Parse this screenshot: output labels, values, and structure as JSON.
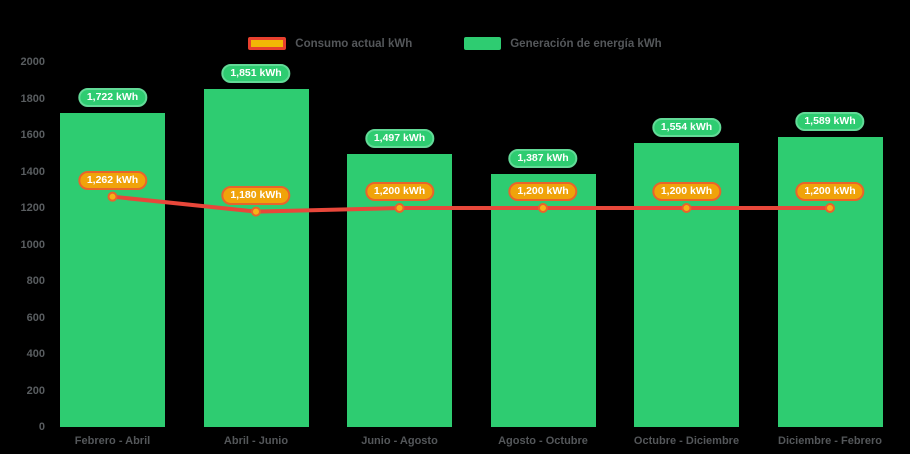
{
  "legend": {
    "items": [
      {
        "id": "consumo",
        "label": "Consumo actual kWh"
      },
      {
        "id": "generacion",
        "label": "Generación de energía kWh"
      }
    ]
  },
  "chart_data": {
    "type": "bar",
    "title": "",
    "categories": [
      "Febrero - Abril",
      "Abril - Junio",
      "Junio - Agosto",
      "Agosto - Octubre",
      "Octubre - Diciembre",
      "Diciembre - Febrero"
    ],
    "series": [
      {
        "name": "Generación de energía kWh",
        "kind": "bar",
        "color": "#2ecc71",
        "values": [
          1722,
          1851,
          1497,
          1387,
          1554,
          1589
        ],
        "labels": [
          "1,722 kWh",
          "1,851 kWh",
          "1,497 kWh",
          "1,387 kWh",
          "1,554 kWh",
          "1,589 kWh"
        ]
      },
      {
        "name": "Consumo actual kWh",
        "kind": "line",
        "color": "#e8473a",
        "point_fill": "#f7b217",
        "point_border": "#e8642c",
        "values": [
          1262,
          1180,
          1200,
          1200,
          1200,
          1200
        ],
        "labels": [
          "1,262 kWh",
          "1,180 kWh",
          "1,200 kWh",
          "1,200 kWh",
          "1,200 kWh",
          "1,200 kWh"
        ]
      }
    ],
    "y_axis": {
      "min": 0,
      "max": 2000,
      "tick_step": 200
    },
    "ylim": [
      0,
      2000
    ],
    "grid": false,
    "legend_position": "top-center"
  },
  "colors": {
    "background": "#000000",
    "bar_green": "#2ecc71",
    "pill_green_border": "#62da97",
    "line_red": "#e8473a",
    "point_fill": "#f7b217",
    "point_border": "#e8642c",
    "pill_orange_bg": "#f0a30a",
    "pill_orange_border": "#e8642c",
    "legend_swatch_fill": "#f2b705",
    "legend_swatch_border": "#e8402e",
    "axis_text": "#595d60",
    "legend_text": "#54575a",
    "value_label_text": "#ffffff"
  }
}
